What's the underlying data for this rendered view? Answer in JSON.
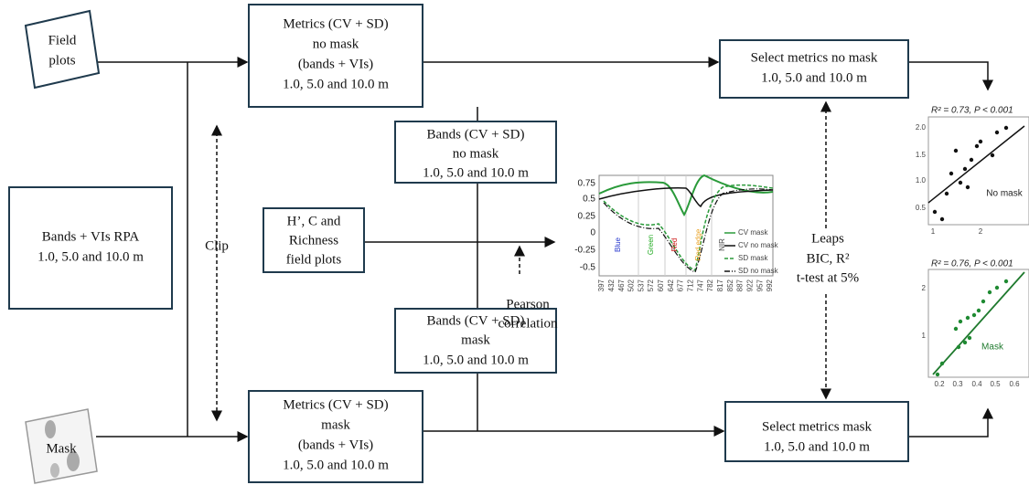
{
  "nodes": [
    {
      "lines": [
        "Field",
        "plots"
      ]
    },
    {
      "lines": [
        "Metrics (CV + SD)",
        "no mask",
        "(bands + VIs)",
        "1.0, 5.0 and 10.0 m"
      ]
    },
    {
      "lines": [
        "Bands (CV + SD)",
        "no mask",
        "1.0, 5.0 and 10.0 m"
      ]
    },
    {
      "lines": [
        "Bands + VIs RPA",
        "1.0, 5.0 and 10.0 m"
      ]
    },
    {
      "lines": [
        "H’, C and",
        "Richness",
        "field plots"
      ]
    },
    {
      "lines": [
        "Bands (CV + SD)",
        "mask",
        "1.0, 5.0 and 10.0 m"
      ]
    },
    {
      "lines": [
        "Metrics (CV + SD)",
        "mask",
        "(bands + VIs)",
        "1.0, 5.0 and 10.0 m"
      ]
    },
    {
      "lines": [
        "Select metrics no mask",
        "1.0, 5.0 and 10.0 m"
      ]
    },
    {
      "lines": [
        "Select metrics mask",
        "1.0, 5.0 and 10.0 m"
      ]
    },
    {
      "lines": [
        "Mask"
      ]
    }
  ],
  "labels": {
    "clip": "Clip",
    "pearson": [
      "Pearson",
      "correlation"
    ],
    "leaps": [
      "Leaps",
      "BIC, R²",
      "t-test at 5%"
    ]
  },
  "spectral_plot": {
    "yticks": [
      "0.75",
      "0.5",
      "0.25",
      "0",
      "-0.25",
      "-0.5"
    ],
    "xticks": [
      "397",
      "432",
      "467",
      "502",
      "537",
      "572",
      "607",
      "642",
      "677",
      "712",
      "747",
      "782",
      "817",
      "852",
      "887",
      "922",
      "957",
      "992"
    ],
    "regions": [
      "Blue",
      "Green",
      "Red",
      "Red edge",
      "NIR"
    ],
    "legend": [
      "CV mask",
      "CV no mask",
      "SD mask",
      "SD no mask"
    ]
  },
  "scatter_no_mask": {
    "title": "R² = 0.73, P < 0.001",
    "yticks": [
      "2.0",
      "1.5",
      "1.0",
      "0.5"
    ],
    "xticks": [
      "1",
      "2"
    ],
    "label": "No mask"
  },
  "scatter_mask": {
    "title": "R² = 0.76, P < 0.001",
    "yticks": [
      "2",
      "1"
    ],
    "xticks": [
      "0.2",
      "0.3",
      "0.4",
      "0.5",
      "0.6"
    ],
    "label": "Mask"
  }
}
